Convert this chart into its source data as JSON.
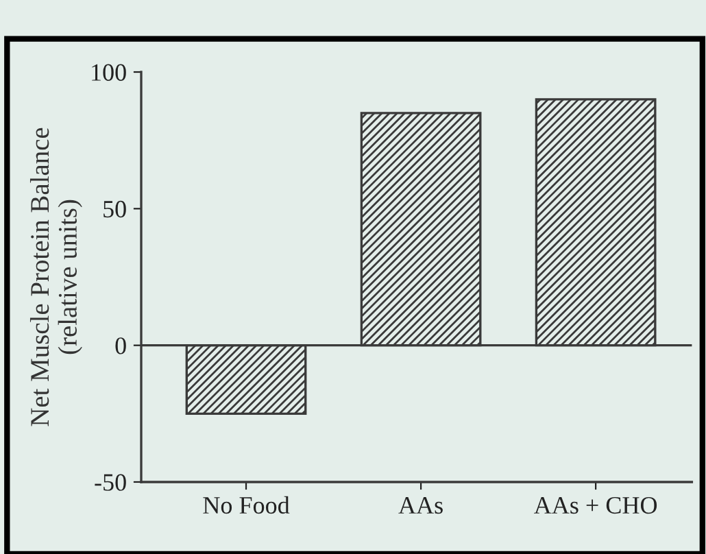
{
  "chart_data": {
    "type": "bar",
    "ylabel": "Net Muscle Protein Balance\n(relative units)",
    "categories": [
      "No Food",
      "AAs",
      "AAs + CHO"
    ],
    "values": [
      -25,
      85,
      90
    ],
    "color": "#3a3a3a",
    "ylim": [
      -50,
      100
    ],
    "yticks": [
      -50,
      0,
      50,
      100
    ],
    "ref_lines": [
      {
        "axis": "y",
        "value": 0,
        "color": "#3a3a3a"
      }
    ],
    "grid": false
  }
}
